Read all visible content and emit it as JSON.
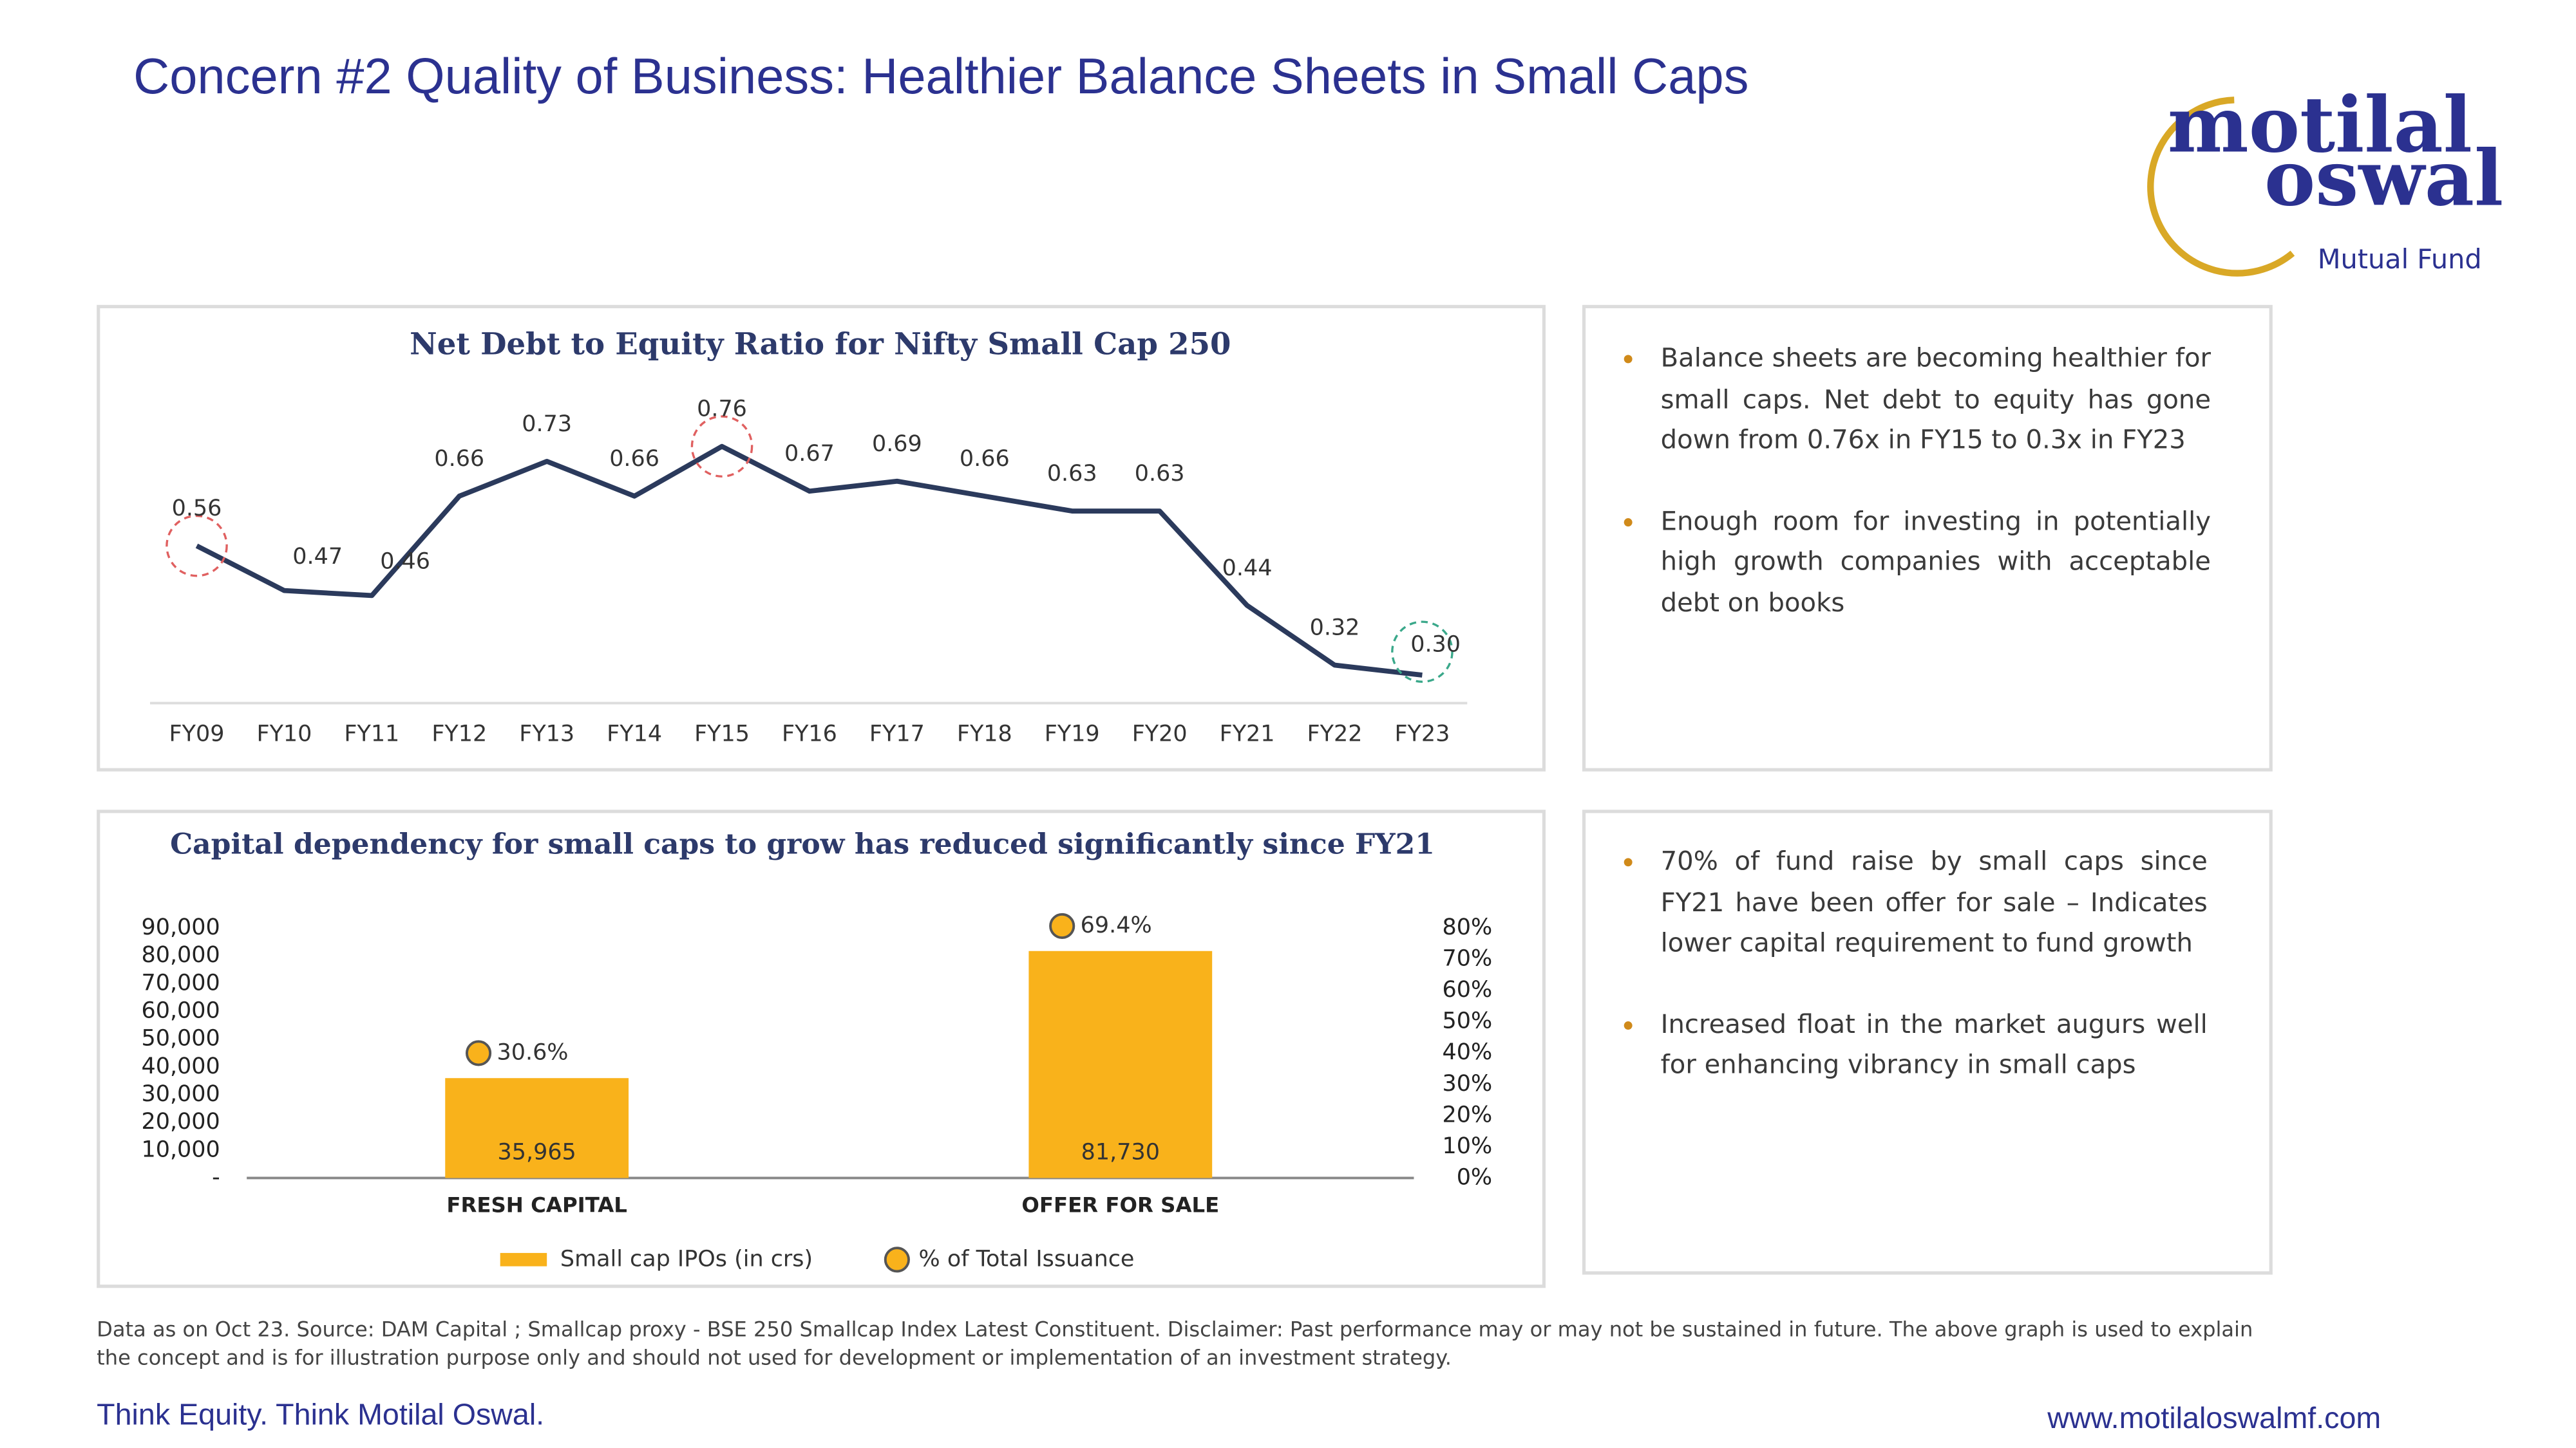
{
  "title": "Concern #2 Quality of Business: Healthier Balance Sheets in Small Caps",
  "logo": {
    "line1": "motilal",
    "line2": "oswal",
    "tagline": "Mutual Fund"
  },
  "chart_data": [
    {
      "type": "line",
      "title": "Net Debt to Equity Ratio for Nifty Small Cap 250",
      "categories": [
        "FY09",
        "FY10",
        "FY11",
        "FY12",
        "FY13",
        "FY14",
        "FY15",
        "FY16",
        "FY17",
        "FY18",
        "FY19",
        "FY20",
        "FY21",
        "FY22",
        "FY23"
      ],
      "values": [
        0.56,
        0.47,
        0.46,
        0.66,
        0.73,
        0.66,
        0.76,
        0.67,
        0.69,
        0.66,
        0.63,
        0.63,
        0.44,
        0.32,
        0.3
      ],
      "value_labels": [
        "0.56",
        "0.47",
        "0.46",
        "0.66",
        "0.73",
        "0.66",
        "0.76",
        "0.67",
        "0.69",
        "0.66",
        "0.63",
        "0.63",
        "0.44",
        "0.32",
        "0.30"
      ],
      "color": "#2b3a5c",
      "ylim": [
        0.2,
        0.8
      ]
    },
    {
      "type": "bar",
      "title": "Capital dependency for small caps to grow has reduced significantly since FY21",
      "categories": [
        "FRESH CAPITAL",
        "OFFER FOR SALE"
      ],
      "series": [
        {
          "name": "Small cap IPOs (in crs)",
          "color": "#f9b21b",
          "values": [
            35965,
            81730
          ],
          "value_labels": [
            "35,965",
            "81,730"
          ]
        },
        {
          "name": "% of Total Issuance",
          "color": "#f9b21b",
          "axis": "y2",
          "values": [
            30.6,
            69.4
          ],
          "value_labels": [
            "30.6%",
            "69.4%"
          ]
        }
      ],
      "ylim": [
        0,
        90000
      ],
      "yticks": [
        {
          "value": 0,
          "label": "-"
        },
        {
          "value": 10000,
          "label": "10,000"
        },
        {
          "value": 20000,
          "label": "20,000"
        },
        {
          "value": 30000,
          "label": "30,000"
        },
        {
          "value": 40000,
          "label": "40,000"
        },
        {
          "value": 50000,
          "label": "50,000"
        },
        {
          "value": 60000,
          "label": "60,000"
        },
        {
          "value": 70000,
          "label": "70,000"
        },
        {
          "value": 80000,
          "label": "80,000"
        },
        {
          "value": 90000,
          "label": "90,000"
        }
      ],
      "y2lim": [
        0,
        80
      ],
      "y2ticks": [
        {
          "value": 0,
          "label": "0%"
        },
        {
          "value": 10,
          "label": "10%"
        },
        {
          "value": 20,
          "label": "20%"
        },
        {
          "value": 30,
          "label": "30%"
        },
        {
          "value": 40,
          "label": "40%"
        },
        {
          "value": 50,
          "label": "50%"
        },
        {
          "value": 60,
          "label": "60%"
        },
        {
          "value": 70,
          "label": "70%"
        },
        {
          "value": 80,
          "label": "80%"
        }
      ]
    }
  ],
  "notes": [
    [
      "Balance sheets are becoming healthier for small caps. Net debt to equity has gone down from 0.76x in FY15 to 0.3x in FY23",
      "Enough room for investing in potentially high growth companies with acceptable debt on books"
    ],
    [
      "70% of fund raise by small caps since FY21 have been offer for sale – Indicates lower capital requirement to fund growth",
      "Increased float in the market augurs well for enhancing vibrancy in small caps"
    ]
  ],
  "footer": {
    "disclaimer": "Data as on Oct 23. Source: DAM Capital ; Smallcap proxy - BSE 250 Smallcap Index Latest Constituent. Disclaimer: Past performance may or may not be sustained in future. The above graph is used to explain the concept and is for illustration purpose only and should not used for development or implementation of an investment strategy.",
    "tagline": "Think Equity. Think Motilal Oswal.",
    "url": "www.motilaloswalmf.com"
  }
}
